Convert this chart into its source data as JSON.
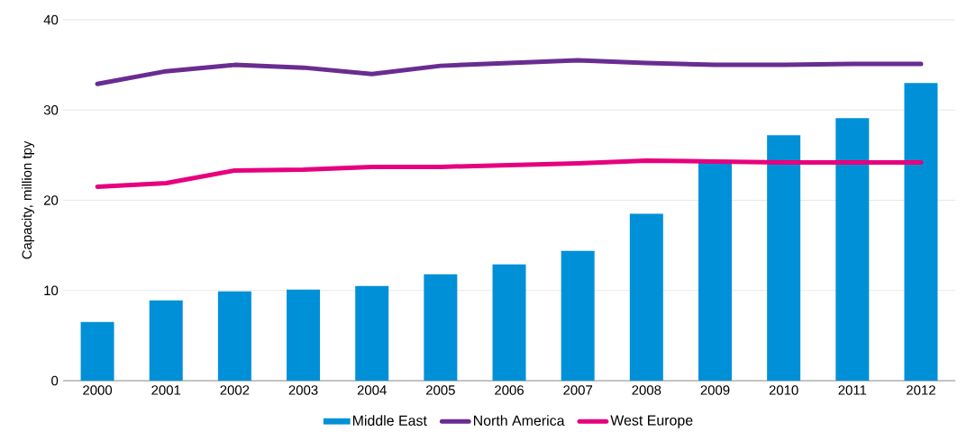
{
  "chart_data": {
    "type": "bar",
    "ylabel": "Capacity, million tpy",
    "categories": [
      "2000",
      "2001",
      "2002",
      "2003",
      "2004",
      "2005",
      "2006",
      "2007",
      "2008",
      "2009",
      "2010",
      "2011",
      "2012"
    ],
    "series": [
      {
        "name": "Middle East",
        "color": "#0090d8",
        "values": [
          6.5,
          8.9,
          9.9,
          10.1,
          10.5,
          11.8,
          12.9,
          14.4,
          18.5,
          24.3,
          27.2,
          29.1,
          33.0
        ]
      },
      {
        "name": "North America",
        "type": "line",
        "color": "#6a2c91",
        "values": [
          32.9,
          34.3,
          35.0,
          34.7,
          34.0,
          34.9,
          35.2,
          35.5,
          35.2,
          35.0,
          35.0,
          35.1,
          35.1
        ]
      },
      {
        "name": "West Europe",
        "type": "line",
        "color": "#e6007e",
        "values": [
          21.5,
          21.9,
          23.3,
          23.4,
          23.7,
          23.7,
          23.9,
          24.1,
          24.4,
          24.3,
          24.2,
          24.2,
          24.2
        ]
      }
    ],
    "ylim": [
      0,
      40
    ],
    "yticks": [
      0,
      10,
      20,
      30,
      40
    ],
    "grid": "y",
    "legend": "bottom",
    "marker": "none",
    "line_style": "solid"
  }
}
